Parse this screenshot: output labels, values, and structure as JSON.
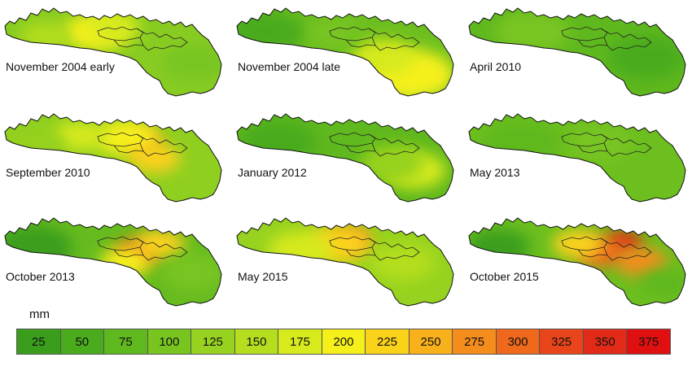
{
  "legend": {
    "unit": "mm",
    "classes": [
      {
        "label": "25",
        "color": "#3a9e1c"
      },
      {
        "label": "50",
        "color": "#4aab1d"
      },
      {
        "label": "75",
        "color": "#5fb81e"
      },
      {
        "label": "100",
        "color": "#78c520"
      },
      {
        "label": "125",
        "color": "#96d21f"
      },
      {
        "label": "150",
        "color": "#b4de1e"
      },
      {
        "label": "175",
        "color": "#d6ea1c"
      },
      {
        "label": "200",
        "color": "#f5f01a"
      },
      {
        "label": "225",
        "color": "#fbd21a"
      },
      {
        "label": "250",
        "color": "#f9b11b"
      },
      {
        "label": "275",
        "color": "#f58d1c"
      },
      {
        "label": "300",
        "color": "#f0681c"
      },
      {
        "label": "325",
        "color": "#e8451a"
      },
      {
        "label": "350",
        "color": "#e22a18"
      },
      {
        "label": "375",
        "color": "#e01010"
      }
    ]
  },
  "maps": [
    {
      "label": "November 2004 early",
      "base": "#88cc22",
      "hotspots": [
        {
          "u": 0.42,
          "v": 0.3,
          "s": 0.1,
          "color": "#f5f01a"
        },
        {
          "u": 0.5,
          "v": 0.25,
          "s": 0.08,
          "color": "#d6ea1c"
        },
        {
          "u": 0.2,
          "v": 0.35,
          "s": 0.08,
          "color": "#b4de1e"
        },
        {
          "u": 0.85,
          "v": 0.6,
          "s": 0.1,
          "color": "#78c520"
        }
      ]
    },
    {
      "label": "November 2004 late",
      "base": "#6cbf1f",
      "hotspots": [
        {
          "u": 0.78,
          "v": 0.72,
          "s": 0.14,
          "color": "#f5f01a"
        },
        {
          "u": 0.66,
          "v": 0.55,
          "s": 0.1,
          "color": "#d6ea1c"
        },
        {
          "u": 0.15,
          "v": 0.3,
          "s": 0.12,
          "color": "#4aab1d"
        },
        {
          "u": 0.45,
          "v": 0.3,
          "s": 0.08,
          "color": "#78c520"
        }
      ]
    },
    {
      "label": "April 2010",
      "base": "#5fb81e",
      "hotspots": [
        {
          "u": 0.3,
          "v": 0.3,
          "s": 0.12,
          "color": "#78c520"
        },
        {
          "u": 0.8,
          "v": 0.55,
          "s": 0.12,
          "color": "#4aab1d"
        }
      ]
    },
    {
      "label": "September 2010",
      "base": "#8fcf20",
      "hotspots": [
        {
          "u": 0.62,
          "v": 0.34,
          "s": 0.06,
          "color": "#f0681c"
        },
        {
          "u": 0.56,
          "v": 0.3,
          "s": 0.1,
          "color": "#f5f01a"
        },
        {
          "u": 0.68,
          "v": 0.5,
          "s": 0.08,
          "color": "#fbd21a"
        },
        {
          "u": 0.35,
          "v": 0.28,
          "s": 0.08,
          "color": "#d6ea1c"
        },
        {
          "u": 0.15,
          "v": 0.4,
          "s": 0.1,
          "color": "#96d21f"
        }
      ]
    },
    {
      "label": "January 2012",
      "base": "#5fb81e",
      "hotspots": [
        {
          "u": 0.8,
          "v": 0.62,
          "s": 0.1,
          "color": "#d6ea1c"
        },
        {
          "u": 0.7,
          "v": 0.55,
          "s": 0.1,
          "color": "#96d21f"
        },
        {
          "u": 0.2,
          "v": 0.35,
          "s": 0.12,
          "color": "#4aab1d"
        }
      ]
    },
    {
      "label": "May 2013",
      "base": "#6cbf1f",
      "hotspots": [
        {
          "u": 0.25,
          "v": 0.35,
          "s": 0.12,
          "color": "#5fb81e"
        },
        {
          "u": 0.6,
          "v": 0.35,
          "s": 0.1,
          "color": "#78c520"
        }
      ]
    },
    {
      "label": "October 2013",
      "base": "#66bb1f",
      "hotspots": [
        {
          "u": 0.6,
          "v": 0.4,
          "s": 0.07,
          "color": "#f0681c"
        },
        {
          "u": 0.55,
          "v": 0.5,
          "s": 0.08,
          "color": "#f5f01a"
        },
        {
          "u": 0.7,
          "v": 0.32,
          "s": 0.08,
          "color": "#fbd21a"
        },
        {
          "u": 0.15,
          "v": 0.35,
          "s": 0.12,
          "color": "#3a9e1c"
        },
        {
          "u": 0.85,
          "v": 0.6,
          "s": 0.1,
          "color": "#78c520"
        }
      ]
    },
    {
      "label": "May 2015",
      "base": "#96d21f",
      "hotspots": [
        {
          "u": 0.52,
          "v": 0.28,
          "s": 0.06,
          "color": "#f0681c"
        },
        {
          "u": 0.47,
          "v": 0.32,
          "s": 0.1,
          "color": "#fbd21a"
        },
        {
          "u": 0.3,
          "v": 0.38,
          "s": 0.1,
          "color": "#d6ea1c"
        },
        {
          "u": 0.75,
          "v": 0.5,
          "s": 0.1,
          "color": "#b4de1e"
        }
      ]
    },
    {
      "label": "October 2015",
      "base": "#6cbf1f",
      "hotspots": [
        {
          "u": 0.7,
          "v": 0.3,
          "s": 0.06,
          "color": "#e22a18"
        },
        {
          "u": 0.6,
          "v": 0.4,
          "s": 0.08,
          "color": "#f0681c"
        },
        {
          "u": 0.78,
          "v": 0.5,
          "s": 0.08,
          "color": "#f58d1c"
        },
        {
          "u": 0.5,
          "v": 0.32,
          "s": 0.08,
          "color": "#fbd21a"
        },
        {
          "u": 0.15,
          "v": 0.35,
          "s": 0.1,
          "color": "#3a9e1c"
        },
        {
          "u": 0.88,
          "v": 0.7,
          "s": 0.08,
          "color": "#5fb81e"
        }
      ]
    }
  ]
}
